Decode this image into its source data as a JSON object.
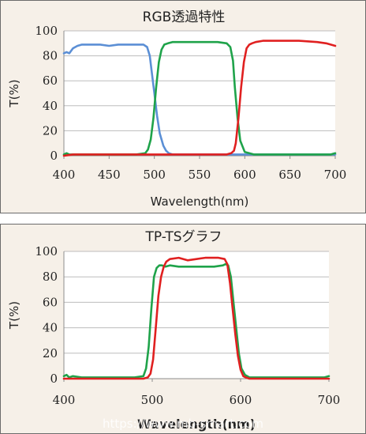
{
  "chart_data": [
    {
      "type": "line",
      "title": "RGB透過特性",
      "xlabel": "Wavelength(nm)",
      "ylabel": "T(%)",
      "xlim": [
        400,
        700
      ],
      "ylim": [
        0,
        100
      ],
      "xticks": [
        "400",
        "450",
        "500",
        "550",
        "600",
        "650",
        "700"
      ],
      "yticks": [
        "0",
        "20",
        "40",
        "60",
        "80",
        "100"
      ],
      "grid": "horizontal",
      "legend": "none",
      "series": [
        {
          "color": "#5b8fd5",
          "x": [
            400,
            403,
            406,
            410,
            415,
            420,
            430,
            440,
            450,
            460,
            470,
            480,
            488,
            492,
            495,
            497,
            500,
            503,
            506,
            510,
            513,
            516,
            520,
            525,
            530,
            540,
            550,
            560,
            600,
            650,
            700
          ],
          "y": [
            82,
            83,
            82,
            86,
            88,
            89,
            89,
            89,
            88,
            89,
            89,
            89,
            89,
            87,
            80,
            68,
            50,
            32,
            18,
            8,
            4,
            2,
            1,
            1,
            1,
            1,
            1,
            1,
            1,
            1,
            1
          ]
        },
        {
          "color": "#1fa34a",
          "x": [
            400,
            403,
            406,
            410,
            420,
            450,
            480,
            490,
            493,
            496,
            499,
            502,
            505,
            508,
            511,
            515,
            520,
            530,
            550,
            570,
            580,
            584,
            587,
            589,
            592,
            595,
            600,
            610,
            650,
            695,
            700
          ],
          "y": [
            1,
            2,
            1,
            1,
            1,
            1,
            1,
            2,
            5,
            13,
            30,
            55,
            75,
            85,
            89,
            90,
            91,
            91,
            91,
            91,
            90,
            87,
            76,
            55,
            30,
            12,
            3,
            1,
            1,
            1,
            2
          ]
        },
        {
          "color": "#e02020",
          "x": [
            400,
            410,
            420,
            450,
            480,
            500,
            550,
            580,
            585,
            588,
            590,
            593,
            596,
            599,
            602,
            605,
            608,
            612,
            620,
            640,
            660,
            680,
            690,
            700
          ],
          "y": [
            0,
            1,
            1,
            1,
            1,
            1,
            1,
            1,
            2,
            4,
            10,
            30,
            55,
            75,
            86,
            89,
            90,
            91,
            92,
            92,
            92,
            91,
            90,
            88
          ]
        }
      ]
    },
    {
      "type": "line",
      "title": "TP-TSグラフ",
      "xlabel": "Wavelength(nm)",
      "ylabel": "T(%)",
      "xlim": [
        400,
        700
      ],
      "ylim": [
        0,
        100
      ],
      "xticks": [
        "400",
        "500",
        "600",
        "700"
      ],
      "yticks": [
        "0",
        "20",
        "40",
        "60",
        "80",
        "100"
      ],
      "grid": "horizontal",
      "legend": "none",
      "series": [
        {
          "color": "#1fa34a",
          "x": [
            400,
            403,
            406,
            410,
            420,
            450,
            480,
            490,
            493,
            496,
            499,
            502,
            505,
            508,
            511,
            515,
            520,
            530,
            550,
            570,
            580,
            583,
            586,
            589,
            592,
            595,
            598,
            601,
            605,
            610,
            650,
            695,
            700
          ],
          "y": [
            2,
            3,
            1,
            2,
            1,
            1,
            1,
            2,
            8,
            25,
            55,
            80,
            87,
            89,
            89,
            88,
            89,
            88,
            88,
            88,
            89,
            90,
            89,
            80,
            60,
            40,
            20,
            8,
            3,
            1,
            1,
            1,
            2
          ]
        },
        {
          "color": "#e02020",
          "x": [
            400,
            410,
            450,
            490,
            495,
            498,
            501,
            504,
            507,
            510,
            513,
            516,
            520,
            530,
            540,
            560,
            575,
            582,
            585,
            588,
            591,
            594,
            597,
            600,
            603,
            606,
            610,
            650,
            700
          ],
          "y": [
            0,
            0,
            0,
            0,
            1,
            4,
            15,
            40,
            65,
            80,
            88,
            92,
            94,
            95,
            93,
            95,
            95,
            94,
            90,
            75,
            55,
            35,
            18,
            7,
            2,
            1,
            0,
            0,
            0
          ]
        }
      ]
    }
  ],
  "watermark": "https://www.mb-smart.com"
}
